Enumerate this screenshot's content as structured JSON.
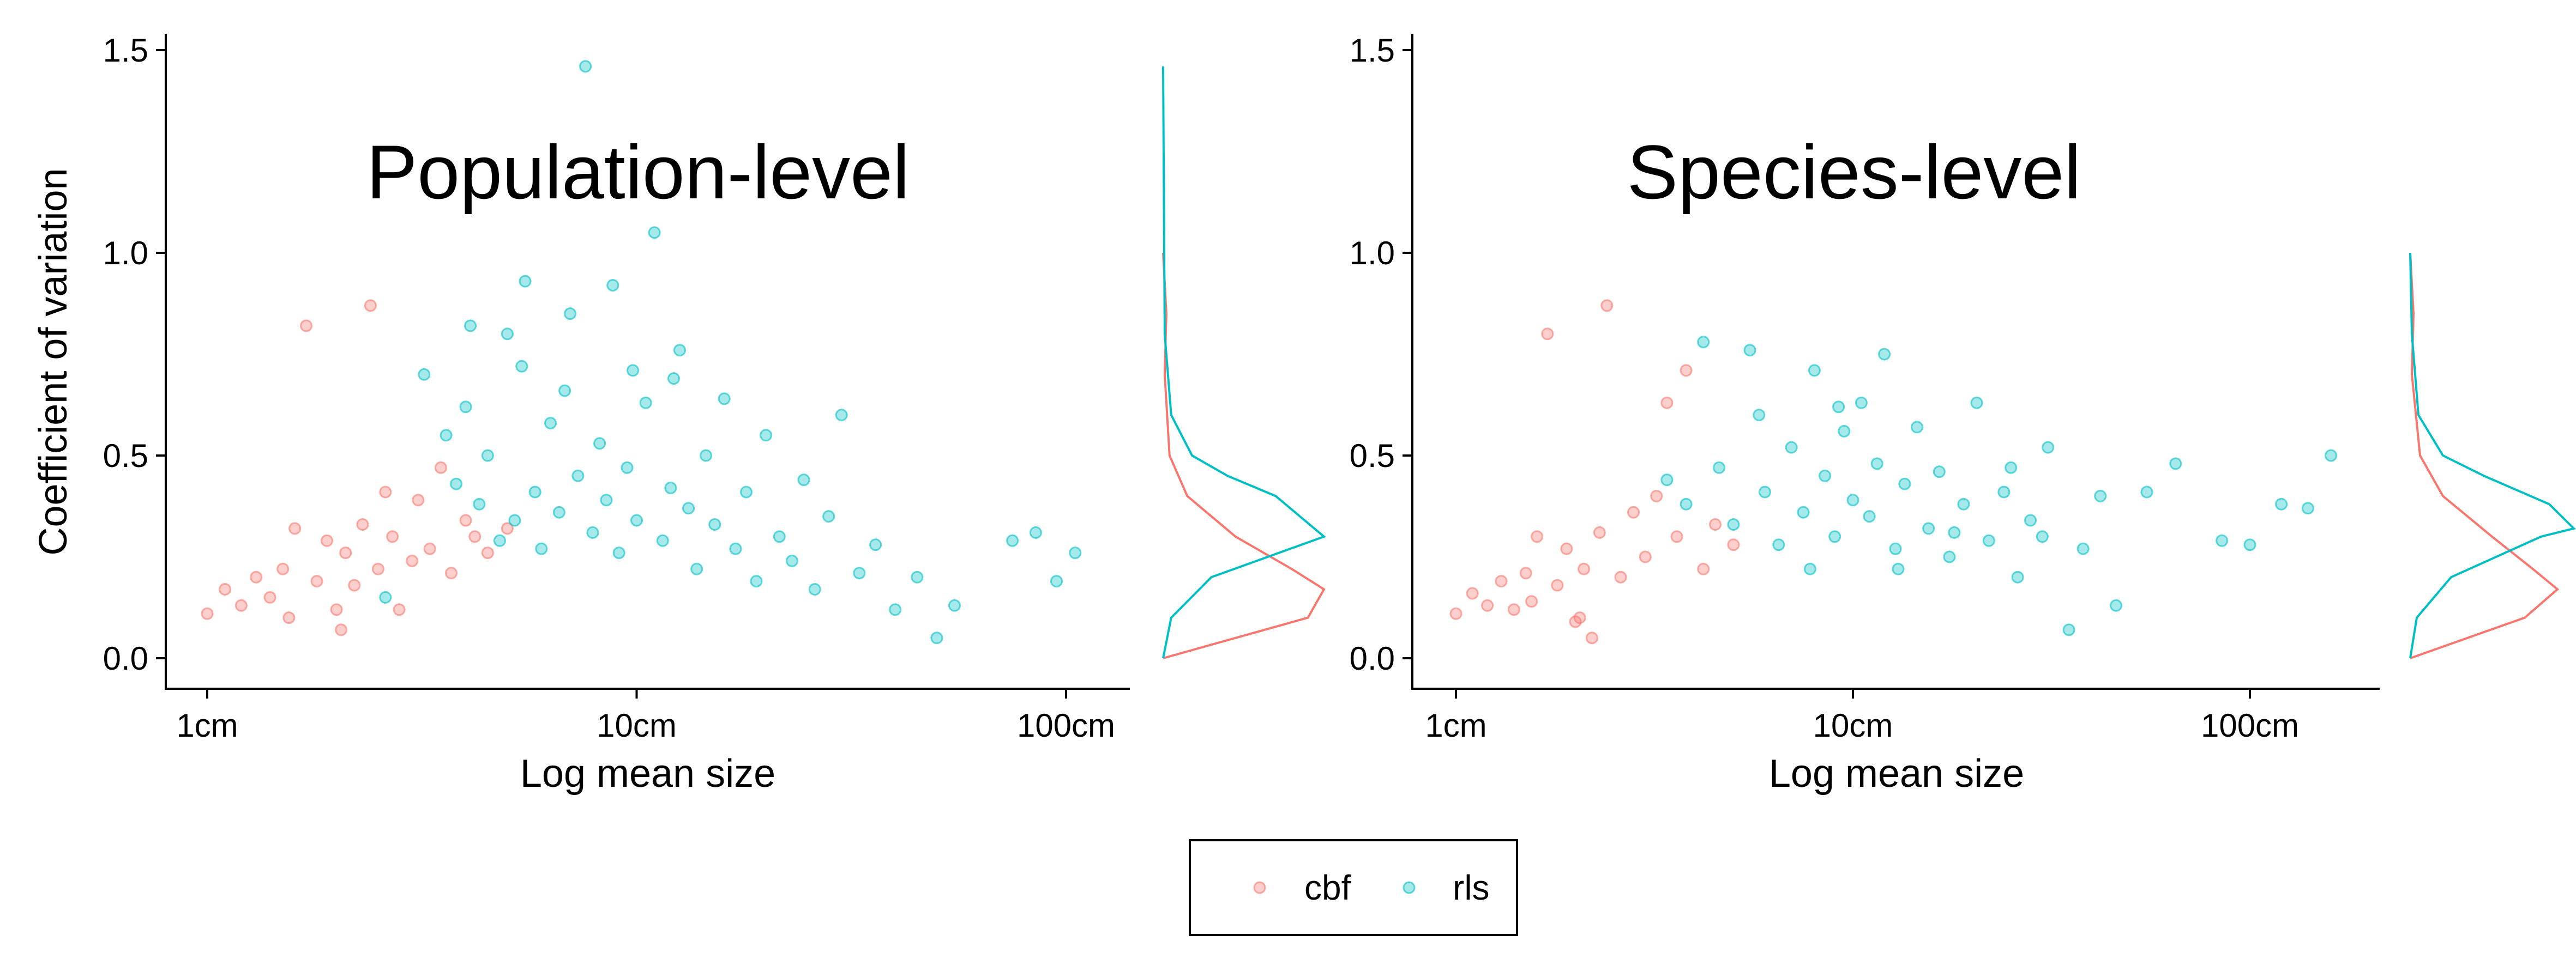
{
  "colors": {
    "cbf": "#F8766D",
    "rls": "#00BFC4"
  },
  "legend": {
    "items": [
      {
        "key": "cbf",
        "label": "cbf"
      },
      {
        "key": "rls",
        "label": "rls"
      }
    ]
  },
  "chart_data": [
    {
      "type": "scatter",
      "title": "Population-level",
      "xlabel": "Log mean size",
      "ylabel": "Coefficient of variation",
      "x_scale": "log10",
      "xlim": [
        0.9,
        110
      ],
      "ylim": [
        0,
        1.5
      ],
      "x_ticks": [
        {
          "value": 1,
          "label": "1cm"
        },
        {
          "value": 10,
          "label": "10cm"
        },
        {
          "value": 100,
          "label": "100cm"
        }
      ],
      "y_ticks": [
        {
          "value": 0,
          "label": "0.0"
        },
        {
          "value": 0.5,
          "label": "0.5"
        },
        {
          "value": 1,
          "label": "1.0"
        },
        {
          "value": 1.5,
          "label": "1.5"
        }
      ],
      "series": [
        {
          "name": "cbf",
          "color": "#F8766D",
          "points": [
            [
              1.0,
              0.11
            ],
            [
              1.1,
              0.17
            ],
            [
              1.2,
              0.13
            ],
            [
              1.3,
              0.2
            ],
            [
              1.4,
              0.15
            ],
            [
              1.5,
              0.22
            ],
            [
              1.6,
              0.32
            ],
            [
              1.7,
              0.82
            ],
            [
              1.8,
              0.19
            ],
            [
              1.9,
              0.29
            ],
            [
              2.0,
              0.12
            ],
            [
              2.1,
              0.26
            ],
            [
              2.2,
              0.18
            ],
            [
              2.3,
              0.33
            ],
            [
              2.4,
              0.87
            ],
            [
              2.5,
              0.22
            ],
            [
              2.6,
              0.41
            ],
            [
              2.7,
              0.3
            ],
            [
              2.8,
              0.12
            ],
            [
              3.0,
              0.24
            ],
            [
              3.1,
              0.39
            ],
            [
              3.3,
              0.27
            ],
            [
              3.5,
              0.47
            ],
            [
              3.7,
              0.21
            ],
            [
              4.0,
              0.34
            ],
            [
              4.2,
              0.3
            ],
            [
              4.5,
              0.26
            ],
            [
              5.0,
              0.32
            ],
            [
              1.55,
              0.1
            ],
            [
              2.05,
              0.07
            ]
          ]
        },
        {
          "name": "rls",
          "color": "#00BFC4",
          "points": [
            [
              2.6,
              0.15
            ],
            [
              3.2,
              0.7
            ],
            [
              3.6,
              0.55
            ],
            [
              3.8,
              0.43
            ],
            [
              4.0,
              0.62
            ],
            [
              4.3,
              0.38
            ],
            [
              4.5,
              0.5
            ],
            [
              4.8,
              0.29
            ],
            [
              5.0,
              0.8
            ],
            [
              5.2,
              0.34
            ],
            [
              5.5,
              0.93
            ],
            [
              5.8,
              0.41
            ],
            [
              6.0,
              0.27
            ],
            [
              6.3,
              0.58
            ],
            [
              6.6,
              0.36
            ],
            [
              7.0,
              0.85
            ],
            [
              7.3,
              0.45
            ],
            [
              7.6,
              1.46
            ],
            [
              7.9,
              0.31
            ],
            [
              8.2,
              0.53
            ],
            [
              8.5,
              0.39
            ],
            [
              8.8,
              0.92
            ],
            [
              9.1,
              0.26
            ],
            [
              9.5,
              0.47
            ],
            [
              10.0,
              0.34
            ],
            [
              10.5,
              0.63
            ],
            [
              11.0,
              1.05
            ],
            [
              11.5,
              0.29
            ],
            [
              12.0,
              0.42
            ],
            [
              12.6,
              0.76
            ],
            [
              13.2,
              0.37
            ],
            [
              13.8,
              0.22
            ],
            [
              14.5,
              0.5
            ],
            [
              15.2,
              0.33
            ],
            [
              16.0,
              0.64
            ],
            [
              17.0,
              0.27
            ],
            [
              18.0,
              0.41
            ],
            [
              19.0,
              0.19
            ],
            [
              20.0,
              0.55
            ],
            [
              21.5,
              0.3
            ],
            [
              23.0,
              0.24
            ],
            [
              24.5,
              0.44
            ],
            [
              26.0,
              0.17
            ],
            [
              28.0,
              0.35
            ],
            [
              30.0,
              0.6
            ],
            [
              33.0,
              0.21
            ],
            [
              36.0,
              0.28
            ],
            [
              40.0,
              0.12
            ],
            [
              45.0,
              0.2
            ],
            [
              50.0,
              0.05
            ],
            [
              55.0,
              0.13
            ],
            [
              75.0,
              0.29
            ],
            [
              85.0,
              0.31
            ],
            [
              95.0,
              0.19
            ],
            [
              105.0,
              0.26
            ],
            [
              4.1,
              0.82
            ],
            [
              5.4,
              0.72
            ],
            [
              6.8,
              0.66
            ],
            [
              9.8,
              0.71
            ],
            [
              12.2,
              0.69
            ]
          ]
        }
      ],
      "density": {
        "cbf": [
          [
            0.0,
            0.0
          ],
          [
            0.1,
            0.9
          ],
          [
            0.17,
            1.0
          ],
          [
            0.22,
            0.8
          ],
          [
            0.3,
            0.45
          ],
          [
            0.4,
            0.15
          ],
          [
            0.5,
            0.04
          ],
          [
            0.7,
            0.01
          ],
          [
            0.85,
            0.02
          ],
          [
            1.0,
            0.0
          ]
        ],
        "rls": [
          [
            0.0,
            0.0
          ],
          [
            0.1,
            0.05
          ],
          [
            0.2,
            0.3
          ],
          [
            0.3,
            1.0
          ],
          [
            0.35,
            0.85
          ],
          [
            0.4,
            0.7
          ],
          [
            0.45,
            0.4
          ],
          [
            0.5,
            0.18
          ],
          [
            0.6,
            0.05
          ],
          [
            0.8,
            0.01
          ],
          [
            1.46,
            0.0
          ]
        ]
      }
    },
    {
      "type": "scatter",
      "title": "Species-level",
      "xlabel": "Log mean size",
      "ylabel": "",
      "x_scale": "log10",
      "xlim": [
        0.9,
        210
      ],
      "ylim": [
        0,
        1.5
      ],
      "x_ticks": [
        {
          "value": 1,
          "label": "1cm"
        },
        {
          "value": 10,
          "label": "10cm"
        },
        {
          "value": 100,
          "label": "100cm"
        }
      ],
      "y_ticks": [
        {
          "value": 0,
          "label": "0.0"
        },
        {
          "value": 0.5,
          "label": "0.5"
        },
        {
          "value": 1,
          "label": "1.0"
        },
        {
          "value": 1.5,
          "label": "1.5"
        }
      ],
      "series": [
        {
          "name": "cbf",
          "color": "#F8766D",
          "points": [
            [
              1.0,
              0.11
            ],
            [
              1.1,
              0.16
            ],
            [
              1.2,
              0.13
            ],
            [
              1.3,
              0.19
            ],
            [
              1.4,
              0.12
            ],
            [
              1.5,
              0.21
            ],
            [
              1.6,
              0.3
            ],
            [
              1.7,
              0.8
            ],
            [
              1.8,
              0.18
            ],
            [
              1.9,
              0.27
            ],
            [
              2.0,
              0.09
            ],
            [
              2.1,
              0.22
            ],
            [
              2.2,
              0.05
            ],
            [
              2.3,
              0.31
            ],
            [
              2.4,
              0.87
            ],
            [
              2.6,
              0.2
            ],
            [
              2.8,
              0.36
            ],
            [
              3.0,
              0.25
            ],
            [
              3.2,
              0.4
            ],
            [
              3.4,
              0.63
            ],
            [
              3.6,
              0.3
            ],
            [
              3.8,
              0.71
            ],
            [
              4.2,
              0.22
            ],
            [
              4.5,
              0.33
            ],
            [
              5.0,
              0.28
            ],
            [
              1.55,
              0.14
            ],
            [
              2.05,
              0.1
            ]
          ]
        },
        {
          "name": "rls",
          "color": "#00BFC4",
          "points": [
            [
              3.4,
              0.44
            ],
            [
              3.8,
              0.38
            ],
            [
              4.2,
              0.78
            ],
            [
              4.6,
              0.47
            ],
            [
              5.0,
              0.33
            ],
            [
              5.5,
              0.76
            ],
            [
              6.0,
              0.41
            ],
            [
              6.5,
              0.28
            ],
            [
              7.0,
              0.52
            ],
            [
              7.5,
              0.36
            ],
            [
              8.0,
              0.71
            ],
            [
              8.5,
              0.45
            ],
            [
              9.0,
              0.3
            ],
            [
              9.5,
              0.56
            ],
            [
              10.0,
              0.39
            ],
            [
              10.5,
              0.63
            ],
            [
              11.0,
              0.35
            ],
            [
              11.5,
              0.48
            ],
            [
              12.0,
              0.75
            ],
            [
              12.8,
              0.27
            ],
            [
              13.5,
              0.43
            ],
            [
              14.5,
              0.57
            ],
            [
              15.5,
              0.32
            ],
            [
              16.5,
              0.46
            ],
            [
              17.5,
              0.25
            ],
            [
              19.0,
              0.38
            ],
            [
              20.5,
              0.63
            ],
            [
              22.0,
              0.29
            ],
            [
              24.0,
              0.41
            ],
            [
              26.0,
              0.2
            ],
            [
              28.0,
              0.34
            ],
            [
              31.0,
              0.52
            ],
            [
              35.0,
              0.07
            ],
            [
              38.0,
              0.27
            ],
            [
              42.0,
              0.4
            ],
            [
              46.0,
              0.13
            ],
            [
              55.0,
              0.41
            ],
            [
              65.0,
              0.48
            ],
            [
              85.0,
              0.29
            ],
            [
              100.0,
              0.28
            ],
            [
              120.0,
              0.38
            ],
            [
              140.0,
              0.37
            ],
            [
              160.0,
              0.5
            ],
            [
              5.8,
              0.6
            ],
            [
              7.8,
              0.22
            ],
            [
              9.2,
              0.62
            ],
            [
              13.0,
              0.22
            ],
            [
              18.0,
              0.31
            ],
            [
              25.0,
              0.47
            ],
            [
              30.0,
              0.3
            ]
          ]
        }
      ],
      "density": {
        "cbf": [
          [
            0.0,
            0.0
          ],
          [
            0.1,
            0.7
          ],
          [
            0.17,
            0.9
          ],
          [
            0.22,
            0.75
          ],
          [
            0.3,
            0.5
          ],
          [
            0.4,
            0.2
          ],
          [
            0.5,
            0.06
          ],
          [
            0.7,
            0.01
          ],
          [
            0.85,
            0.02
          ],
          [
            1.0,
            0.0
          ]
        ],
        "rls": [
          [
            0.0,
            0.0
          ],
          [
            0.1,
            0.04
          ],
          [
            0.2,
            0.25
          ],
          [
            0.3,
            0.8
          ],
          [
            0.32,
            1.0
          ],
          [
            0.38,
            0.85
          ],
          [
            0.45,
            0.45
          ],
          [
            0.5,
            0.2
          ],
          [
            0.6,
            0.05
          ],
          [
            0.8,
            0.01
          ],
          [
            1.0,
            0.0
          ]
        ]
      }
    }
  ]
}
